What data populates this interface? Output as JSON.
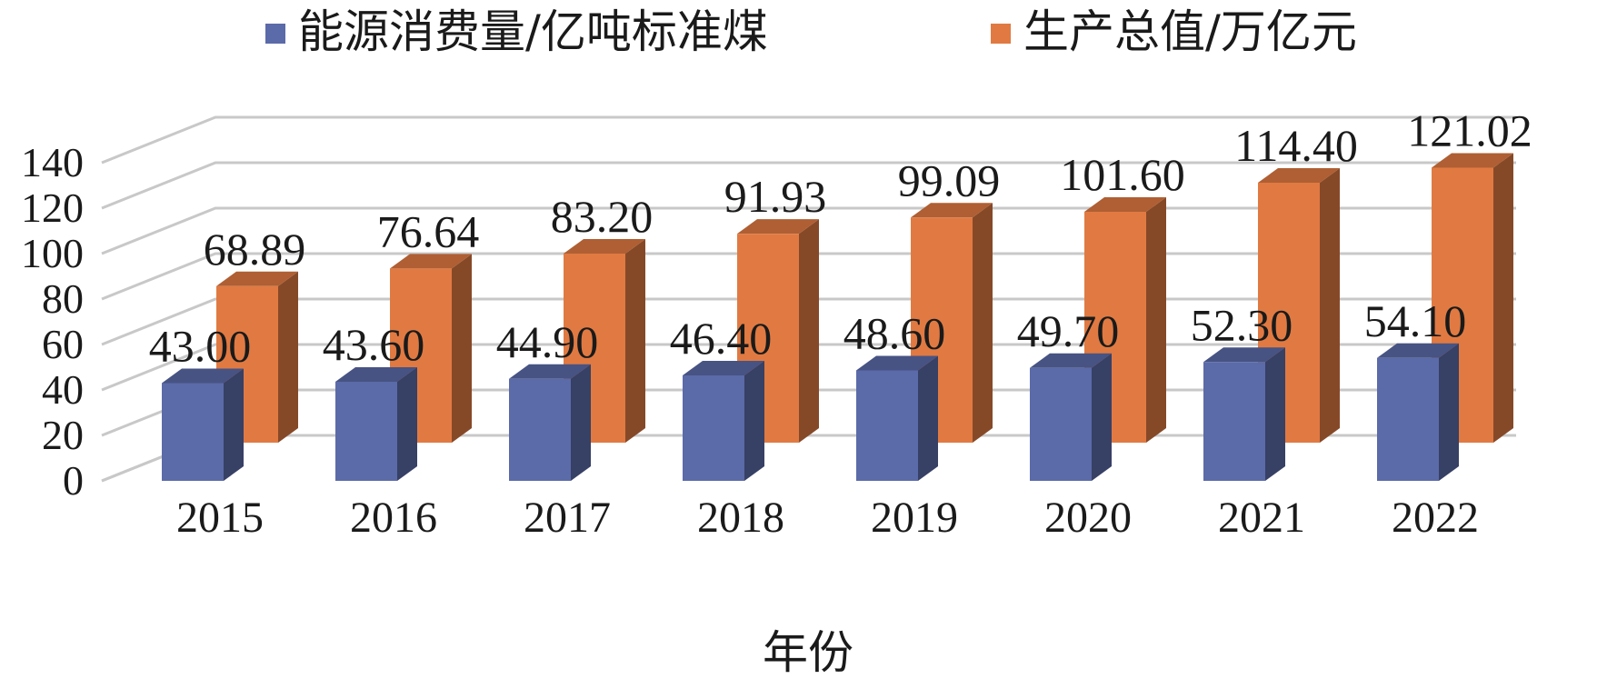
{
  "chart_data": {
    "type": "bar",
    "style": "3d-clustered-column",
    "categories": [
      "2015",
      "2016",
      "2017",
      "2018",
      "2019",
      "2020",
      "2021",
      "2022"
    ],
    "series": [
      {
        "name": "能源消费量/亿吨标准煤",
        "color": "#5b6aa8",
        "values": [
          43.0,
          43.6,
          44.9,
          46.4,
          48.6,
          49.7,
          52.3,
          54.1
        ],
        "labels": [
          "43.00",
          "43.60",
          "44.90",
          "46.40",
          "48.60",
          "49.70",
          "52.30",
          "54.10"
        ]
      },
      {
        "name": "生产总值/万亿元",
        "color": "#e07a42",
        "values": [
          68.89,
          76.64,
          83.2,
          91.93,
          99.09,
          101.6,
          114.4,
          121.02
        ],
        "labels": [
          "68.89",
          "76.64",
          "83.20",
          "91.93",
          "99.09",
          "101.60",
          "114.40",
          "121.02"
        ]
      }
    ],
    "xlabel": "年份",
    "ylabel": "",
    "ylim": [
      0,
      140
    ],
    "yticks": [
      "0",
      "20",
      "40",
      "60",
      "80",
      "100",
      "120",
      "140"
    ],
    "grid": true,
    "legend_position": "top"
  }
}
